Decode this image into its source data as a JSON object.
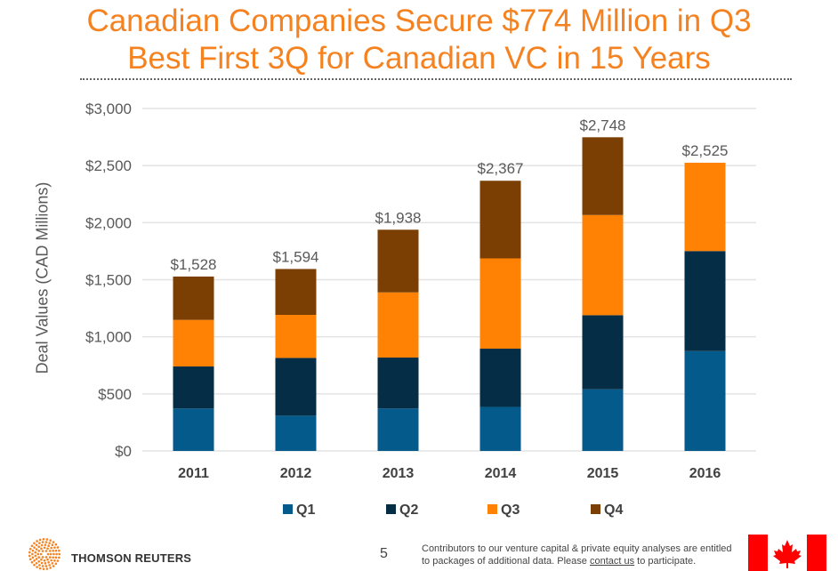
{
  "title_line1": "Canadian Companies Secure $774 Million in Q3",
  "title_line2": "Best First 3Q for Canadian VC in 15 Years",
  "chart_data": {
    "type": "bar",
    "stacked": true,
    "categories": [
      "2011",
      "2012",
      "2013",
      "2014",
      "2015",
      "2016"
    ],
    "series": [
      {
        "name": "Q1",
        "color": "#045a8a",
        "values": [
          372,
          309,
          372,
          386,
          540,
          875
        ]
      },
      {
        "name": "Q2",
        "color": "#052d45",
        "values": [
          368,
          506,
          446,
          510,
          649,
          876
        ]
      },
      {
        "name": "Q3",
        "color": "#ff8205",
        "values": [
          408,
          377,
          571,
          791,
          878,
          774
        ]
      },
      {
        "name": "Q4",
        "color": "#7c3f03",
        "values": [
          380,
          402,
          549,
          680,
          681,
          null
        ]
      }
    ],
    "totals_labels": [
      "$1,528",
      "$1,594",
      "$1,938",
      "$2,367",
      "$2,748",
      "$2,525"
    ],
    "ylabel": "Deal Values (CAD Millions)",
    "ylim": [
      0,
      3000
    ],
    "yticks": [
      0,
      500,
      1000,
      1500,
      2000,
      2500,
      3000
    ],
    "ytick_labels": [
      "$0",
      "$500",
      "$1,000",
      "$1,500",
      "$2,000",
      "$2,500",
      "$3,000"
    ],
    "grid": true,
    "legend_position": "bottom"
  },
  "footer": {
    "brand": "THOMSON REUTERS",
    "page_number": "5",
    "note_before": "Contributors to our venture capital & private equity analyses are entitled to packages of additional data. Please ",
    "note_link": "contact us",
    "note_after": " to participate."
  }
}
